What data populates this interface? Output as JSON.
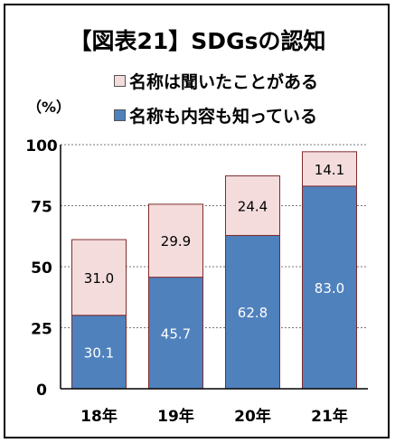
{
  "chart_data": {
    "type": "bar",
    "stacked": true,
    "title": "【図表21】SDGsの認知",
    "ylabel": "（%）",
    "categories": [
      "18年",
      "19年",
      "20年",
      "21年"
    ],
    "ylim": [
      0,
      100
    ],
    "yticks": [
      "0",
      "25",
      "50",
      "75",
      "100"
    ],
    "grid": true,
    "legend_position": "top",
    "series": [
      {
        "name": "名称も内容も知っている",
        "values": [
          30.1,
          45.7,
          62.8,
          83.0
        ],
        "labels": [
          "30.1",
          "45.7",
          "62.8",
          "83.0"
        ],
        "color": "#4f81bd",
        "label_color": "#ffffff"
      },
      {
        "name": "名称は聞いたことがある",
        "values": [
          31.0,
          29.9,
          24.4,
          14.1
        ],
        "labels": [
          "31.0",
          "29.9",
          "24.4",
          "14.1"
        ],
        "color": "#f4dcdc",
        "label_color": "#000000"
      }
    ],
    "legend_order": [
      1,
      0
    ]
  }
}
